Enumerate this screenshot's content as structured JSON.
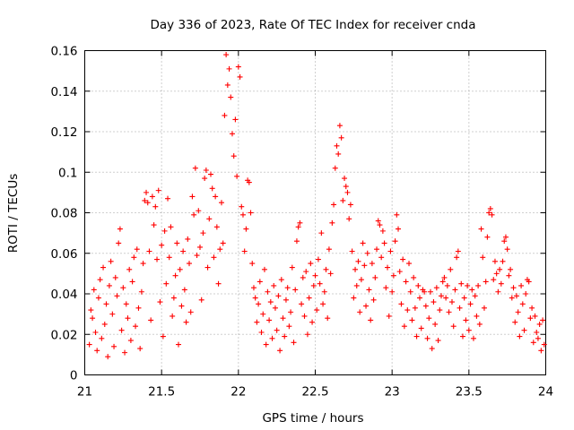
{
  "chart_data": {
    "type": "scatter",
    "title": "Day 336 of 2023, Rate Of TEC Index for receiver cnda",
    "xlabel": "GPS time / hours",
    "ylabel": "ROTI / TECUs",
    "xlim": [
      21,
      24
    ],
    "ylim": [
      0,
      0.16
    ],
    "xticks": [
      21,
      21.5,
      22,
      22.5,
      23,
      23.5,
      24
    ],
    "xtick_labels": [
      "21",
      "21.5",
      "22",
      "22.5",
      "23",
      "23.5",
      "24"
    ],
    "yticks": [
      0,
      0.02,
      0.04,
      0.06,
      0.08,
      0.1,
      0.12,
      0.14,
      0.16
    ],
    "ytick_labels": [
      "0",
      "0.02",
      "0.04",
      "0.06",
      "0.08",
      "0.1",
      "0.12",
      "0.14",
      "0.16"
    ],
    "grid": true,
    "marker": "+",
    "color": "#ff0000",
    "series": [
      {
        "name": "cnda",
        "points": [
          [
            21.03,
            0.015
          ],
          [
            21.04,
            0.032
          ],
          [
            21.05,
            0.028
          ],
          [
            21.06,
            0.042
          ],
          [
            21.07,
            0.021
          ],
          [
            21.08,
            0.012
          ],
          [
            21.09,
            0.038
          ],
          [
            21.1,
            0.047
          ],
          [
            21.11,
            0.018
          ],
          [
            21.12,
            0.053
          ],
          [
            21.13,
            0.025
          ],
          [
            21.14,
            0.035
          ],
          [
            21.15,
            0.009
          ],
          [
            21.16,
            0.044
          ],
          [
            21.17,
            0.056
          ],
          [
            21.18,
            0.03
          ],
          [
            21.19,
            0.014
          ],
          [
            21.2,
            0.048
          ],
          [
            21.21,
            0.039
          ],
          [
            21.22,
            0.065
          ],
          [
            21.23,
            0.072
          ],
          [
            21.24,
            0.022
          ],
          [
            21.25,
            0.043
          ],
          [
            21.26,
            0.011
          ],
          [
            21.27,
            0.035
          ],
          [
            21.28,
            0.028
          ],
          [
            21.29,
            0.052
          ],
          [
            21.3,
            0.017
          ],
          [
            21.31,
            0.046
          ],
          [
            21.32,
            0.058
          ],
          [
            21.33,
            0.024
          ],
          [
            21.34,
            0.062
          ],
          [
            21.35,
            0.033
          ],
          [
            21.36,
            0.013
          ],
          [
            21.37,
            0.041
          ],
          [
            21.38,
            0.055
          ],
          [
            21.39,
            0.086
          ],
          [
            21.4,
            0.09
          ],
          [
            21.41,
            0.085
          ],
          [
            21.42,
            0.061
          ],
          [
            21.43,
            0.027
          ],
          [
            21.44,
            0.088
          ],
          [
            21.45,
            0.074
          ],
          [
            21.46,
            0.083
          ],
          [
            21.47,
            0.057
          ],
          [
            21.48,
            0.091
          ],
          [
            21.49,
            0.036
          ],
          [
            21.5,
            0.064
          ],
          [
            21.51,
            0.019
          ],
          [
            21.52,
            0.071
          ],
          [
            21.53,
            0.045
          ],
          [
            21.54,
            0.087
          ],
          [
            21.55,
            0.058
          ],
          [
            21.56,
            0.073
          ],
          [
            21.57,
            0.029
          ],
          [
            21.58,
            0.038
          ],
          [
            21.59,
            0.049
          ],
          [
            21.6,
            0.065
          ],
          [
            21.61,
            0.015
          ],
          [
            21.62,
            0.052
          ],
          [
            21.63,
            0.034
          ],
          [
            21.64,
            0.061
          ],
          [
            21.65,
            0.042
          ],
          [
            21.66,
            0.026
          ],
          [
            21.67,
            0.067
          ],
          [
            21.68,
            0.055
          ],
          [
            21.69,
            0.031
          ],
          [
            21.7,
            0.088
          ],
          [
            21.71,
            0.079
          ],
          [
            21.72,
            0.102
          ],
          [
            21.73,
            0.059
          ],
          [
            21.74,
            0.081
          ],
          [
            21.75,
            0.063
          ],
          [
            21.76,
            0.037
          ],
          [
            21.77,
            0.07
          ],
          [
            21.78,
            0.097
          ],
          [
            21.79,
            0.101
          ],
          [
            21.8,
            0.053
          ],
          [
            21.81,
            0.077
          ],
          [
            21.82,
            0.099
          ],
          [
            21.83,
            0.092
          ],
          [
            21.84,
            0.058
          ],
          [
            21.85,
            0.088
          ],
          [
            21.86,
            0.073
          ],
          [
            21.87,
            0.045
          ],
          [
            21.88,
            0.062
          ],
          [
            21.89,
            0.085
          ],
          [
            21.9,
            0.065
          ],
          [
            21.91,
            0.128
          ],
          [
            21.92,
            0.158
          ],
          [
            21.93,
            0.143
          ],
          [
            21.94,
            0.151
          ],
          [
            21.95,
            0.137
          ],
          [
            21.96,
            0.119
          ],
          [
            21.97,
            0.108
          ],
          [
            21.98,
            0.126
          ],
          [
            21.99,
            0.098
          ],
          [
            22.0,
            0.152
          ],
          [
            22.01,
            0.147
          ],
          [
            22.02,
            0.083
          ],
          [
            22.03,
            0.079
          ],
          [
            22.04,
            0.061
          ],
          [
            22.05,
            0.072
          ],
          [
            22.06,
            0.096
          ],
          [
            22.07,
            0.095
          ],
          [
            22.08,
            0.08
          ],
          [
            22.09,
            0.055
          ],
          [
            22.1,
            0.043
          ],
          [
            22.11,
            0.038
          ],
          [
            22.12,
            0.026
          ],
          [
            22.13,
            0.035
          ],
          [
            22.14,
            0.046
          ],
          [
            22.15,
            0.021
          ],
          [
            22.16,
            0.03
          ],
          [
            22.17,
            0.052
          ],
          [
            22.18,
            0.015
          ],
          [
            22.19,
            0.041
          ],
          [
            22.2,
            0.027
          ],
          [
            22.21,
            0.036
          ],
          [
            22.22,
            0.018
          ],
          [
            22.23,
            0.044
          ],
          [
            22.24,
            0.033
          ],
          [
            22.25,
            0.022
          ],
          [
            22.26,
            0.039
          ],
          [
            22.27,
            0.012
          ],
          [
            22.28,
            0.047
          ],
          [
            22.29,
            0.028
          ],
          [
            22.3,
            0.019
          ],
          [
            22.31,
            0.037
          ],
          [
            22.32,
            0.043
          ],
          [
            22.33,
            0.024
          ],
          [
            22.34,
            0.031
          ],
          [
            22.35,
            0.053
          ],
          [
            22.36,
            0.016
          ],
          [
            22.37,
            0.042
          ],
          [
            22.38,
            0.066
          ],
          [
            22.39,
            0.073
          ],
          [
            22.4,
            0.075
          ],
          [
            22.41,
            0.035
          ],
          [
            22.42,
            0.048
          ],
          [
            22.43,
            0.029
          ],
          [
            22.44,
            0.051
          ],
          [
            22.45,
            0.02
          ],
          [
            22.46,
            0.038
          ],
          [
            22.47,
            0.055
          ],
          [
            22.48,
            0.026
          ],
          [
            22.49,
            0.044
          ],
          [
            22.5,
            0.049
          ],
          [
            22.51,
            0.032
          ],
          [
            22.52,
            0.057
          ],
          [
            22.53,
            0.045
          ],
          [
            22.54,
            0.07
          ],
          [
            22.55,
            0.035
          ],
          [
            22.56,
            0.041
          ],
          [
            22.57,
            0.052
          ],
          [
            22.58,
            0.028
          ],
          [
            22.59,
            0.062
          ],
          [
            22.6,
            0.05
          ],
          [
            22.61,
            0.075
          ],
          [
            22.62,
            0.084
          ],
          [
            22.63,
            0.102
          ],
          [
            22.64,
            0.113
          ],
          [
            22.65,
            0.109
          ],
          [
            22.66,
            0.123
          ],
          [
            22.67,
            0.117
          ],
          [
            22.68,
            0.086
          ],
          [
            22.69,
            0.097
          ],
          [
            22.7,
            0.093
          ],
          [
            22.71,
            0.09
          ],
          [
            22.72,
            0.077
          ],
          [
            22.73,
            0.084
          ],
          [
            22.74,
            0.061
          ],
          [
            22.75,
            0.038
          ],
          [
            22.76,
            0.052
          ],
          [
            22.77,
            0.044
          ],
          [
            22.78,
            0.056
          ],
          [
            22.79,
            0.031
          ],
          [
            22.8,
            0.047
          ],
          [
            22.81,
            0.065
          ],
          [
            22.82,
            0.054
          ],
          [
            22.83,
            0.034
          ],
          [
            22.84,
            0.06
          ],
          [
            22.85,
            0.042
          ],
          [
            22.86,
            0.027
          ],
          [
            22.87,
            0.055
          ],
          [
            22.88,
            0.037
          ],
          [
            22.89,
            0.048
          ],
          [
            22.9,
            0.062
          ],
          [
            22.91,
            0.076
          ],
          [
            22.92,
            0.074
          ],
          [
            22.93,
            0.058
          ],
          [
            22.94,
            0.071
          ],
          [
            22.95,
            0.065
          ],
          [
            22.96,
            0.043
          ],
          [
            22.97,
            0.053
          ],
          [
            22.98,
            0.029
          ],
          [
            22.99,
            0.061
          ],
          [
            23.0,
            0.041
          ],
          [
            23.01,
            0.049
          ],
          [
            23.02,
            0.066
          ],
          [
            23.03,
            0.079
          ],
          [
            23.04,
            0.072
          ],
          [
            23.05,
            0.051
          ],
          [
            23.06,
            0.035
          ],
          [
            23.07,
            0.057
          ],
          [
            23.08,
            0.024
          ],
          [
            23.09,
            0.046
          ],
          [
            23.1,
            0.032
          ],
          [
            23.11,
            0.055
          ],
          [
            23.12,
            0.041
          ],
          [
            23.13,
            0.027
          ],
          [
            23.14,
            0.048
          ],
          [
            23.15,
            0.033
          ],
          [
            23.16,
            0.019
          ],
          [
            23.17,
            0.044
          ],
          [
            23.18,
            0.038
          ],
          [
            23.19,
            0.023
          ],
          [
            23.2,
            0.042
          ],
          [
            23.21,
            0.041
          ],
          [
            23.22,
            0.034
          ],
          [
            23.23,
            0.018
          ],
          [
            23.24,
            0.028
          ],
          [
            23.25,
            0.041
          ],
          [
            23.26,
            0.013
          ],
          [
            23.27,
            0.036
          ],
          [
            23.28,
            0.025
          ],
          [
            23.29,
            0.043
          ],
          [
            23.3,
            0.017
          ],
          [
            23.31,
            0.032
          ],
          [
            23.32,
            0.039
          ],
          [
            23.33,
            0.046
          ],
          [
            23.34,
            0.048
          ],
          [
            23.35,
            0.038
          ],
          [
            23.36,
            0.044
          ],
          [
            23.37,
            0.031
          ],
          [
            23.38,
            0.052
          ],
          [
            23.39,
            0.036
          ],
          [
            23.4,
            0.024
          ],
          [
            23.41,
            0.042
          ],
          [
            23.42,
            0.058
          ],
          [
            23.43,
            0.061
          ],
          [
            23.44,
            0.033
          ],
          [
            23.45,
            0.045
          ],
          [
            23.46,
            0.019
          ],
          [
            23.47,
            0.038
          ],
          [
            23.48,
            0.027
          ],
          [
            23.49,
            0.044
          ],
          [
            23.5,
            0.022
          ],
          [
            23.51,
            0.035
          ],
          [
            23.52,
            0.042
          ],
          [
            23.53,
            0.018
          ],
          [
            23.54,
            0.039
          ],
          [
            23.55,
            0.029
          ],
          [
            23.56,
            0.044
          ],
          [
            23.57,
            0.025
          ],
          [
            23.58,
            0.072
          ],
          [
            23.59,
            0.058
          ],
          [
            23.6,
            0.033
          ],
          [
            23.61,
            0.046
          ],
          [
            23.62,
            0.068
          ],
          [
            23.63,
            0.08
          ],
          [
            23.64,
            0.082
          ],
          [
            23.65,
            0.079
          ],
          [
            23.66,
            0.047
          ],
          [
            23.67,
            0.056
          ],
          [
            23.68,
            0.05
          ],
          [
            23.69,
            0.041
          ],
          [
            23.7,
            0.052
          ],
          [
            23.71,
            0.045
          ],
          [
            23.72,
            0.056
          ],
          [
            23.73,
            0.066
          ],
          [
            23.74,
            0.068
          ],
          [
            23.75,
            0.062
          ],
          [
            23.76,
            0.049
          ],
          [
            23.77,
            0.052
          ],
          [
            23.78,
            0.038
          ],
          [
            23.79,
            0.043
          ],
          [
            23.8,
            0.026
          ],
          [
            23.81,
            0.039
          ],
          [
            23.82,
            0.031
          ],
          [
            23.83,
            0.019
          ],
          [
            23.84,
            0.044
          ],
          [
            23.85,
            0.035
          ],
          [
            23.86,
            0.022
          ],
          [
            23.87,
            0.04
          ],
          [
            23.88,
            0.047
          ],
          [
            23.89,
            0.046
          ],
          [
            23.9,
            0.028
          ],
          [
            23.91,
            0.033
          ],
          [
            23.92,
            0.016
          ],
          [
            23.93,
            0.029
          ],
          [
            23.94,
            0.021
          ],
          [
            23.95,
            0.018
          ],
          [
            23.96,
            0.025
          ],
          [
            23.97,
            0.012
          ],
          [
            23.98,
            0.027
          ],
          [
            23.99,
            0.015
          ]
        ]
      }
    ]
  }
}
